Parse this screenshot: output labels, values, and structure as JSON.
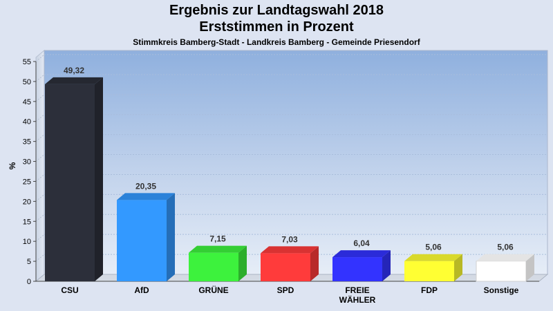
{
  "header": {
    "title_line1": "Ergebnis zur Landtagswahl 2018",
    "title_line2": "Erststimmen in Prozent",
    "subtitle": "Stimmkreis Bamberg-Stadt - Landkreis Bamberg - Gemeinde Priesendorf"
  },
  "chart_data": {
    "type": "bar",
    "ylabel": "%",
    "ylim": [
      0,
      55
    ],
    "yticks": [
      0,
      5,
      10,
      15,
      20,
      25,
      30,
      35,
      40,
      45,
      50,
      55
    ],
    "grid": true,
    "categories": [
      {
        "label": "CSU",
        "value": 49.32,
        "value_label": "49,32",
        "color": "#2c2f3a"
      },
      {
        "label": "AfD",
        "value": 20.35,
        "value_label": "20,35",
        "color": "#3399ff"
      },
      {
        "label": "GRÜNE",
        "value": 7.15,
        "value_label": "7,15",
        "color": "#3df23d"
      },
      {
        "label": "SPD",
        "value": 7.03,
        "value_label": "7,03",
        "color": "#ff3b3b"
      },
      {
        "label": "FREIE WÄHLER",
        "value": 6.04,
        "value_label": "6,04",
        "color": "#3333ff"
      },
      {
        "label": "FDP",
        "value": 5.06,
        "value_label": "5,06",
        "color": "#ffff33"
      },
      {
        "label": "Sonstige",
        "value": 5.06,
        "value_label": "5,06",
        "color": "#ffffff"
      }
    ]
  }
}
